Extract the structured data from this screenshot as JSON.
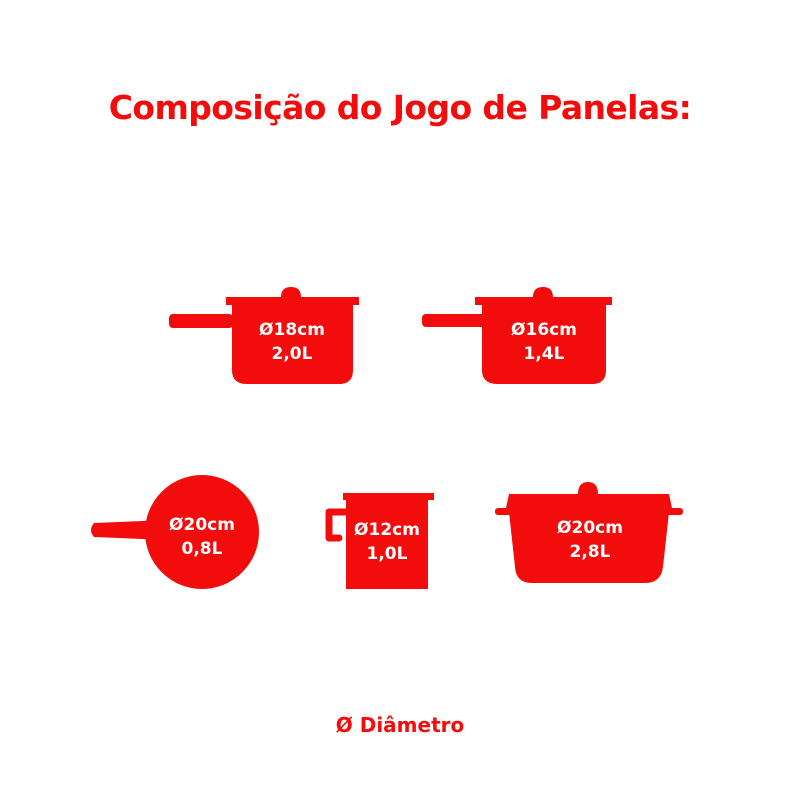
{
  "title": "Composição do Jogo de Panelas:",
  "accent_color": "#f20c0c",
  "pans": [
    {
      "diameter": "Ø18cm",
      "capacity": "2,0L",
      "icon": "saucepan-icon"
    },
    {
      "diameter": "Ø16cm",
      "capacity": "1,4L",
      "icon": "saucepan-icon"
    },
    {
      "diameter": "Ø20cm",
      "capacity": "0,8L",
      "icon": "frying-pan-icon"
    },
    {
      "diameter": "Ø12cm",
      "capacity": "1,0L",
      "icon": "milk-pot-icon"
    },
    {
      "diameter": "Ø20cm",
      "capacity": "2,8L",
      "icon": "casserole-icon"
    }
  ],
  "legend": "Ø Diâmetro"
}
